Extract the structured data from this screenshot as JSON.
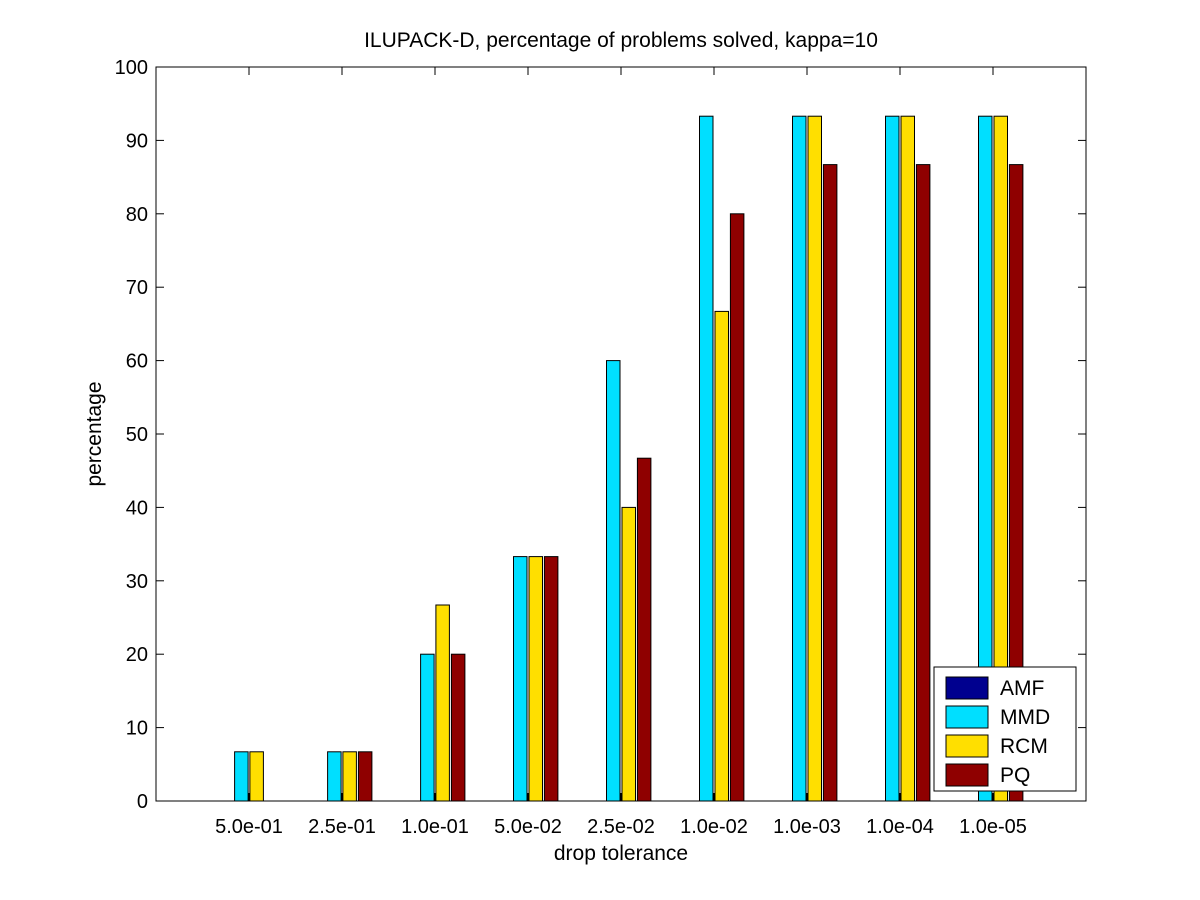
{
  "chart_data": {
    "type": "bar",
    "title": "ILUPACK-D, percentage of problems solved, kappa=10",
    "xlabel": "drop tolerance",
    "ylabel": "percentage",
    "categories": [
      "5.0e-01",
      "2.5e-01",
      "1.0e-01",
      "5.0e-02",
      "2.5e-02",
      "1.0e-02",
      "1.0e-03",
      "1.0e-04",
      "1.0e-05"
    ],
    "ylim": [
      0,
      100
    ],
    "yticks": [
      0,
      10,
      20,
      30,
      40,
      50,
      60,
      70,
      80,
      90,
      100
    ],
    "grid": false,
    "legend_position": "bottom-right",
    "series": [
      {
        "name": "AMF",
        "color": "#00008f",
        "values": [
          0,
          0,
          0,
          0,
          0,
          0,
          0,
          0,
          0
        ]
      },
      {
        "name": "MMD",
        "color": "#00dfff",
        "values": [
          6.7,
          6.7,
          20,
          33.3,
          60,
          93.3,
          93.3,
          93.3,
          93.3
        ]
      },
      {
        "name": "RCM",
        "color": "#ffdf00",
        "values": [
          6.7,
          6.7,
          26.7,
          33.3,
          40,
          66.7,
          93.3,
          93.3,
          93.3
        ]
      },
      {
        "name": "PQ",
        "color": "#8f0000",
        "values": [
          0,
          6.7,
          20,
          33.3,
          46.7,
          80,
          86.7,
          86.7,
          86.7
        ]
      }
    ]
  }
}
